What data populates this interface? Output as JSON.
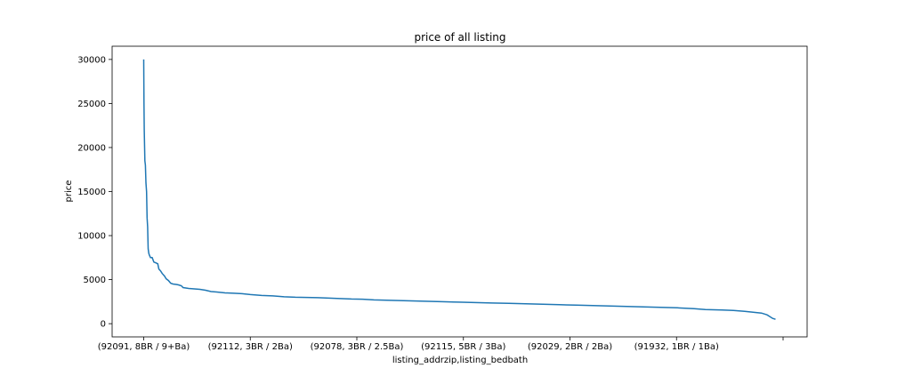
{
  "chart_data": {
    "type": "line",
    "title": "price of all listing",
    "xlabel": "listing_addrzip,listing_bedbath",
    "ylabel": "price",
    "ylim": [
      -1500,
      31500
    ],
    "yticks": [
      0,
      5000,
      10000,
      15000,
      20000,
      25000,
      30000
    ],
    "x_tick_labels": [
      "(92091, 8BR / 9+Ba)",
      "(92112, 3BR / 2Ba)",
      "(92078, 3BR / 2.5Ba)",
      "(92115, 5BR / 3Ba)",
      "(92029, 2BR / 2Ba)",
      "(91932, 1BR / 1Ba)",
      ""
    ],
    "grid": false,
    "color": "#1f77b4",
    "series": [
      {
        "points": [
          [
            0,
            30000
          ],
          [
            0.5,
            25000
          ],
          [
            1,
            22000
          ],
          [
            2,
            18500
          ],
          [
            3,
            18000
          ],
          [
            4,
            16000
          ],
          [
            5,
            15000
          ],
          [
            6,
            12000
          ],
          [
            7,
            11000
          ],
          [
            8,
            8500
          ],
          [
            9,
            8000
          ],
          [
            10,
            7800
          ],
          [
            12,
            7500
          ],
          [
            15,
            7500
          ],
          [
            18,
            7000
          ],
          [
            22,
            6900
          ],
          [
            25,
            6800
          ],
          [
            27,
            6200
          ],
          [
            30,
            6000
          ],
          [
            33,
            5700
          ],
          [
            37,
            5400
          ],
          [
            40,
            5100
          ],
          [
            44,
            4900
          ],
          [
            48,
            4600
          ],
          [
            52,
            4500
          ],
          [
            58,
            4450
          ],
          [
            62,
            4400
          ],
          [
            67,
            4300
          ],
          [
            70,
            4100
          ],
          [
            80,
            4000
          ],
          [
            90,
            3950
          ],
          [
            100,
            3900
          ],
          [
            110,
            3800
          ],
          [
            120,
            3650
          ],
          [
            130,
            3600
          ],
          [
            145,
            3500
          ],
          [
            160,
            3450
          ],
          [
            175,
            3400
          ],
          [
            190,
            3300
          ],
          [
            210,
            3200
          ],
          [
            230,
            3150
          ],
          [
            250,
            3050
          ],
          [
            270,
            3000
          ],
          [
            290,
            2980
          ],
          [
            310,
            2950
          ],
          [
            330,
            2900
          ],
          [
            350,
            2850
          ],
          [
            370,
            2800
          ],
          [
            390,
            2780
          ],
          [
            410,
            2700
          ],
          [
            440,
            2650
          ],
          [
            470,
            2600
          ],
          [
            500,
            2550
          ],
          [
            530,
            2500
          ],
          [
            560,
            2450
          ],
          [
            590,
            2400
          ],
          [
            620,
            2350
          ],
          [
            650,
            2300
          ],
          [
            680,
            2250
          ],
          [
            710,
            2200
          ],
          [
            740,
            2150
          ],
          [
            770,
            2100
          ],
          [
            800,
            2050
          ],
          [
            830,
            2000
          ],
          [
            860,
            1950
          ],
          [
            890,
            1900
          ],
          [
            920,
            1850
          ],
          [
            950,
            1800
          ],
          [
            980,
            1700
          ],
          [
            1000,
            1600
          ],
          [
            1030,
            1550
          ],
          [
            1050,
            1500
          ],
          [
            1070,
            1400
          ],
          [
            1085,
            1300
          ],
          [
            1100,
            1200
          ],
          [
            1110,
            1000
          ],
          [
            1115,
            800
          ],
          [
            1120,
            600
          ],
          [
            1125,
            500
          ]
        ]
      }
    ]
  }
}
